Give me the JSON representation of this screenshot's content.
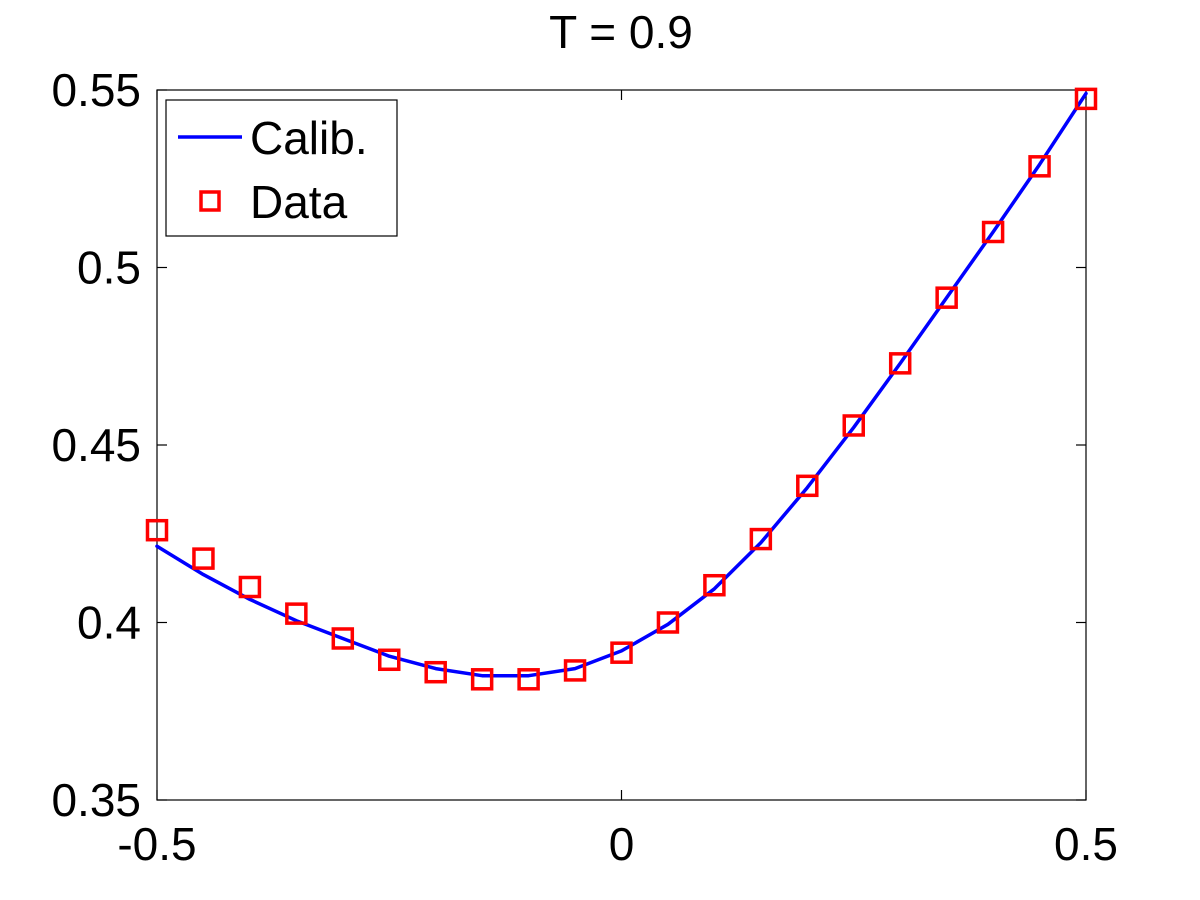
{
  "chart_data": {
    "type": "line",
    "title": "T = 0.9",
    "xlabel": "",
    "ylabel": "",
    "xlim": [
      -0.5,
      0.5
    ],
    "ylim": [
      0.35,
      0.55
    ],
    "x_ticks": [
      -0.5,
      0,
      0.5
    ],
    "x_tick_labels": [
      "-0.5",
      "0",
      "0.5"
    ],
    "y_ticks": [
      0.35,
      0.4,
      0.45,
      0.5,
      0.55
    ],
    "y_tick_labels": [
      "0.35",
      "0.4",
      "0.45",
      "0.5",
      "0.55"
    ],
    "grid": false,
    "legend": {
      "position": "top-left",
      "entries": [
        "Calib.",
        "Data"
      ]
    },
    "colors": {
      "calib": "#0000ff",
      "data": "#ff0000"
    },
    "series": [
      {
        "name": "Calib.",
        "style": "line",
        "x": [
          -0.5,
          -0.45,
          -0.4,
          -0.35,
          -0.3,
          -0.25,
          -0.2,
          -0.15,
          -0.1,
          -0.05,
          0.0,
          0.05,
          0.1,
          0.15,
          0.2,
          0.25,
          0.3,
          0.35,
          0.4,
          0.45,
          0.5
        ],
        "values": [
          0.4215,
          0.4135,
          0.4065,
          0.4005,
          0.3955,
          0.3905,
          0.387,
          0.385,
          0.385,
          0.387,
          0.392,
          0.3995,
          0.4095,
          0.4225,
          0.438,
          0.455,
          0.473,
          0.4915,
          0.51,
          0.529,
          0.549
        ]
      },
      {
        "name": "Data",
        "style": "marker-square",
        "x": [
          -0.5,
          -0.45,
          -0.4,
          -0.35,
          -0.3,
          -0.25,
          -0.2,
          -0.15,
          -0.1,
          -0.05,
          0.0,
          0.05,
          0.1,
          0.15,
          0.2,
          0.25,
          0.3,
          0.35,
          0.4,
          0.45,
          0.5
        ],
        "values": [
          0.426,
          0.418,
          0.41,
          0.4025,
          0.3955,
          0.3895,
          0.386,
          0.384,
          0.384,
          0.3865,
          0.3915,
          0.4,
          0.4105,
          0.4235,
          0.4385,
          0.4555,
          0.473,
          0.4915,
          0.51,
          0.5285,
          0.5475
        ]
      }
    ]
  }
}
